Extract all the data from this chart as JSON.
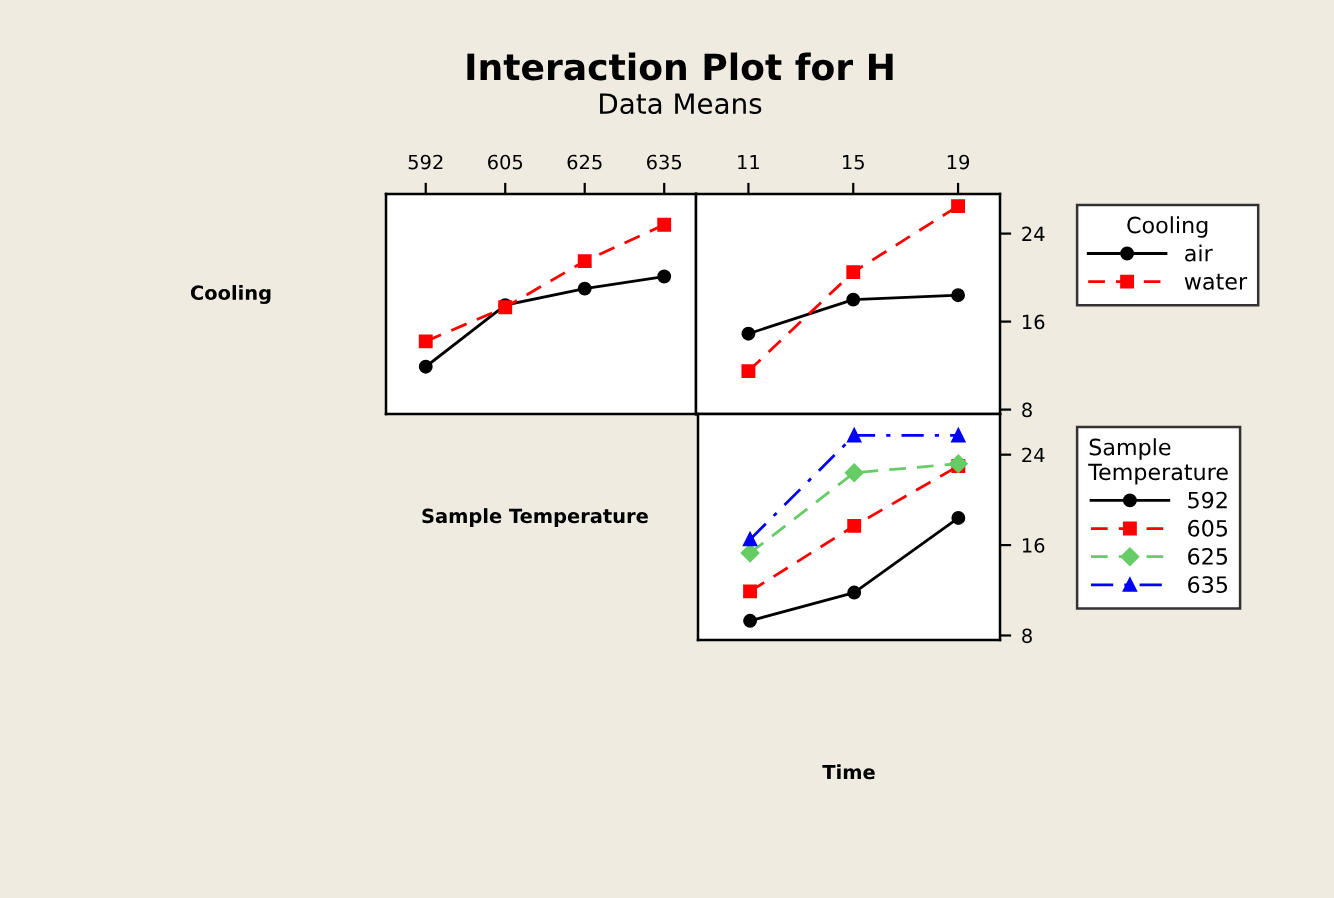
{
  "chart_data": [
    {
      "type": "line",
      "title": "Interaction Plot for H",
      "subtitle": "Data Means",
      "ylabel": "Cooling",
      "categories": [
        "592",
        "605",
        "625",
        "635"
      ],
      "ylim": [
        7.6,
        27.6
      ],
      "yticks": [
        8,
        16,
        24
      ],
      "tick_labels": "x",
      "series": [
        {
          "color": "#000000",
          "marker": "circle",
          "line_style": "solid",
          "values": [
            11.9,
            17.5,
            19.0,
            20.1
          ]
        },
        {
          "color": "#ff0000",
          "marker": "square",
          "line_style": "dashed",
          "values": [
            14.2,
            17.3,
            21.5,
            24.8
          ]
        }
      ]
    },
    {
      "type": "line",
      "categories": [
        "11",
        "15",
        "19"
      ],
      "ylim": [
        7.6,
        27.6
      ],
      "yticks": [
        8,
        16,
        24
      ],
      "legend": "right",
      "legend_title": "Cooling",
      "series": [
        {
          "name": "air",
          "color": "#000000",
          "marker": "circle",
          "line_style": "solid",
          "values": [
            14.9,
            18.0,
            18.4
          ]
        },
        {
          "name": "water",
          "color": "#ff0000",
          "marker": "square",
          "line_style": "dashed",
          "values": [
            11.5,
            20.5,
            26.5
          ]
        }
      ]
    },
    {
      "type": "line",
      "ylabel": "Sample Temperature",
      "xlabel": "Time",
      "categories": [
        "11",
        "15",
        "19"
      ],
      "ylim": [
        7.6,
        27.6
      ],
      "yticks": [
        8,
        16,
        24
      ],
      "tick_labels": "y",
      "legend": "right",
      "legend_title": "Sample\nTemperature",
      "series": [
        {
          "name": "592",
          "color": "#000000",
          "marker": "circle",
          "line_style": "solid",
          "values": [
            9.3,
            11.8,
            18.4
          ]
        },
        {
          "name": "605",
          "color": "#ff0000",
          "marker": "square",
          "line_style": "dashed",
          "values": [
            11.9,
            17.7,
            23.0
          ]
        },
        {
          "name": "625",
          "color": "#66cc66",
          "marker": "diamond",
          "line_style": "dashed",
          "values": [
            15.3,
            22.4,
            23.2
          ]
        },
        {
          "name": "635",
          "color": "#0000ff",
          "marker": "triangle",
          "line_style": "dashdot",
          "values": [
            16.5,
            25.7,
            25.7
          ]
        }
      ]
    }
  ]
}
